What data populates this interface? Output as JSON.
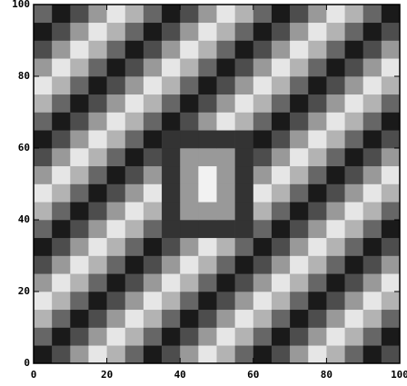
{
  "chart_data": {
    "type": "heatmap",
    "xlim": [
      0,
      100
    ],
    "ylim": [
      0,
      100
    ],
    "xticks": [
      0,
      20,
      40,
      60,
      80,
      100
    ],
    "yticks": [
      0,
      20,
      40,
      60,
      80,
      100
    ],
    "z": [
      [
        0.1,
        0.3,
        0.6,
        0.9,
        0.7,
        0.4,
        0.1,
        0.3,
        0.6,
        0.9,
        0.7,
        0.4,
        0.1,
        0.3,
        0.6,
        0.9,
        0.7,
        0.4,
        0.1,
        0.3
      ],
      [
        0.4,
        0.1,
        0.3,
        0.6,
        0.9,
        0.7,
        0.4,
        0.1,
        0.3,
        0.6,
        0.9,
        0.7,
        0.4,
        0.1,
        0.3,
        0.6,
        0.9,
        0.7,
        0.4,
        0.1
      ],
      [
        0.7,
        0.4,
        0.1,
        0.3,
        0.6,
        0.9,
        0.7,
        0.4,
        0.1,
        0.3,
        0.6,
        0.9,
        0.7,
        0.4,
        0.1,
        0.3,
        0.6,
        0.9,
        0.7,
        0.4
      ],
      [
        0.9,
        0.7,
        0.4,
        0.1,
        0.3,
        0.6,
        0.9,
        0.7,
        0.4,
        0.1,
        0.3,
        0.6,
        0.9,
        0.7,
        0.4,
        0.1,
        0.3,
        0.6,
        0.9,
        0.7
      ],
      [
        0.6,
        0.9,
        0.7,
        0.4,
        0.1,
        0.3,
        0.6,
        0.9,
        0.7,
        0.4,
        0.1,
        0.3,
        0.6,
        0.9,
        0.7,
        0.4,
        0.1,
        0.3,
        0.6,
        0.9
      ],
      [
        0.3,
        0.6,
        0.9,
        0.7,
        0.4,
        0.1,
        0.3,
        0.6,
        0.9,
        0.7,
        0.4,
        0.1,
        0.3,
        0.6,
        0.9,
        0.7,
        0.4,
        0.1,
        0.3,
        0.6
      ],
      [
        0.1,
        0.3,
        0.6,
        0.9,
        0.7,
        0.4,
        0.1,
        0.3,
        0.6,
        0.9,
        0.7,
        0.4,
        0.1,
        0.3,
        0.6,
        0.9,
        0.7,
        0.4,
        0.1,
        0.3
      ],
      [
        0.4,
        0.1,
        0.3,
        0.6,
        0.9,
        0.7,
        0.4,
        0.2,
        0.2,
        0.2,
        0.2,
        0.2,
        0.4,
        0.1,
        0.3,
        0.6,
        0.9,
        0.7,
        0.4,
        0.1
      ],
      [
        0.7,
        0.4,
        0.1,
        0.3,
        0.6,
        0.9,
        0.7,
        0.2,
        0.6,
        0.6,
        0.6,
        0.2,
        0.7,
        0.4,
        0.1,
        0.3,
        0.6,
        0.9,
        0.7,
        0.4
      ],
      [
        0.9,
        0.7,
        0.4,
        0.1,
        0.3,
        0.6,
        0.9,
        0.2,
        0.6,
        0.95,
        0.6,
        0.2,
        0.9,
        0.7,
        0.4,
        0.1,
        0.3,
        0.6,
        0.9,
        0.7
      ],
      [
        0.6,
        0.9,
        0.7,
        0.4,
        0.1,
        0.3,
        0.6,
        0.2,
        0.6,
        0.95,
        0.6,
        0.2,
        0.6,
        0.9,
        0.7,
        0.4,
        0.1,
        0.3,
        0.6,
        0.9
      ],
      [
        0.3,
        0.6,
        0.9,
        0.7,
        0.4,
        0.1,
        0.3,
        0.2,
        0.6,
        0.6,
        0.6,
        0.2,
        0.3,
        0.6,
        0.9,
        0.7,
        0.4,
        0.1,
        0.3,
        0.6
      ],
      [
        0.1,
        0.3,
        0.6,
        0.9,
        0.7,
        0.4,
        0.1,
        0.2,
        0.2,
        0.2,
        0.2,
        0.2,
        0.1,
        0.3,
        0.6,
        0.9,
        0.7,
        0.4,
        0.1,
        0.3
      ],
      [
        0.4,
        0.1,
        0.3,
        0.6,
        0.9,
        0.7,
        0.4,
        0.1,
        0.3,
        0.6,
        0.9,
        0.7,
        0.4,
        0.1,
        0.3,
        0.6,
        0.9,
        0.7,
        0.4,
        0.1
      ],
      [
        0.7,
        0.4,
        0.1,
        0.3,
        0.6,
        0.9,
        0.7,
        0.4,
        0.1,
        0.3,
        0.6,
        0.9,
        0.7,
        0.4,
        0.1,
        0.3,
        0.6,
        0.9,
        0.7,
        0.4
      ],
      [
        0.9,
        0.7,
        0.4,
        0.1,
        0.3,
        0.6,
        0.9,
        0.7,
        0.4,
        0.1,
        0.3,
        0.6,
        0.9,
        0.7,
        0.4,
        0.1,
        0.3,
        0.6,
        0.9,
        0.7
      ],
      [
        0.6,
        0.9,
        0.7,
        0.4,
        0.1,
        0.3,
        0.6,
        0.9,
        0.7,
        0.4,
        0.1,
        0.3,
        0.6,
        0.9,
        0.7,
        0.4,
        0.1,
        0.3,
        0.6,
        0.9
      ],
      [
        0.3,
        0.6,
        0.9,
        0.7,
        0.4,
        0.1,
        0.3,
        0.6,
        0.9,
        0.7,
        0.4,
        0.1,
        0.3,
        0.6,
        0.9,
        0.7,
        0.4,
        0.1,
        0.3,
        0.6
      ],
      [
        0.1,
        0.3,
        0.6,
        0.9,
        0.7,
        0.4,
        0.1,
        0.3,
        0.6,
        0.9,
        0.7,
        0.4,
        0.1,
        0.3,
        0.6,
        0.9,
        0.7,
        0.4,
        0.1,
        0.3
      ],
      [
        0.4,
        0.1,
        0.3,
        0.6,
        0.9,
        0.7,
        0.4,
        0.1,
        0.3,
        0.6,
        0.9,
        0.7,
        0.4,
        0.1,
        0.3,
        0.6,
        0.9,
        0.7,
        0.4,
        0.1
      ]
    ]
  }
}
